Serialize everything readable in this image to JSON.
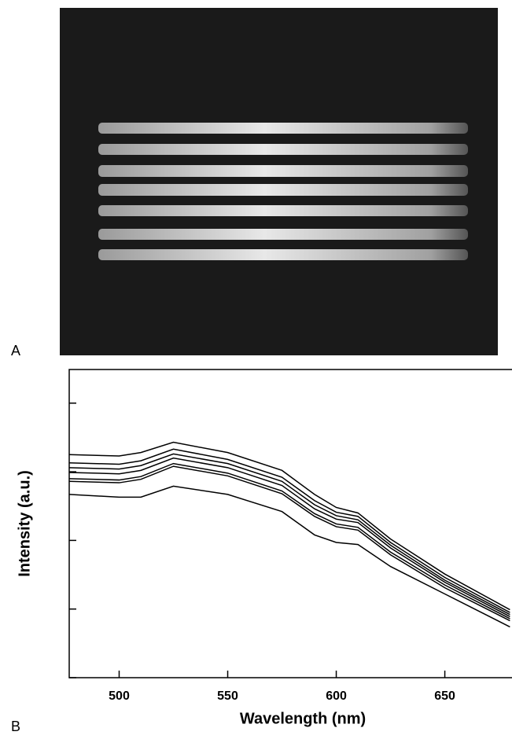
{
  "panel_labels": [
    "A",
    "B"
  ],
  "chart_data": {
    "type": "line",
    "x_label": "Wavelength (nm)",
    "y_label": "Intensity (a.u.)",
    "x": [
      477,
      500,
      510,
      525,
      550,
      575,
      590,
      600,
      610,
      625,
      650,
      680
    ],
    "series": [
      {
        "color": "#000000",
        "values": [
          3.25,
          3.23,
          3.28,
          3.43,
          3.28,
          3.02,
          2.67,
          2.48,
          2.4,
          2.02,
          1.51,
          0.99
        ]
      },
      {
        "color": "#000000",
        "values": [
          3.13,
          3.11,
          3.16,
          3.33,
          3.18,
          2.92,
          2.58,
          2.41,
          2.35,
          1.97,
          1.46,
          0.95
        ]
      },
      {
        "color": "#000000",
        "values": [
          3.06,
          3.04,
          3.09,
          3.26,
          3.12,
          2.86,
          2.52,
          2.36,
          2.3,
          1.93,
          1.42,
          0.92
        ]
      },
      {
        "color": "#000000",
        "values": [
          2.99,
          2.97,
          3.02,
          3.2,
          3.06,
          2.8,
          2.46,
          2.31,
          2.26,
          1.89,
          1.39,
          0.89
        ]
      },
      {
        "color": "#000000",
        "values": [
          2.9,
          2.88,
          2.93,
          3.12,
          2.98,
          2.72,
          2.39,
          2.24,
          2.19,
          1.83,
          1.35,
          0.86
        ]
      },
      {
        "color": "#000000",
        "values": [
          2.86,
          2.84,
          2.89,
          3.08,
          2.94,
          2.68,
          2.35,
          2.2,
          2.15,
          1.79,
          1.31,
          0.83
        ]
      },
      {
        "color": "#000000",
        "values": [
          2.67,
          2.63,
          2.63,
          2.79,
          2.67,
          2.42,
          2.08,
          1.97,
          1.94,
          1.62,
          1.22,
          0.74
        ]
      }
    ],
    "xlim": [
      477,
      690
    ],
    "xticks": [
      500,
      550,
      600,
      650
    ],
    "ylim": [
      0,
      4.49
    ],
    "yticks": [
      0,
      1,
      2,
      3,
      4
    ],
    "grid": false
  }
}
